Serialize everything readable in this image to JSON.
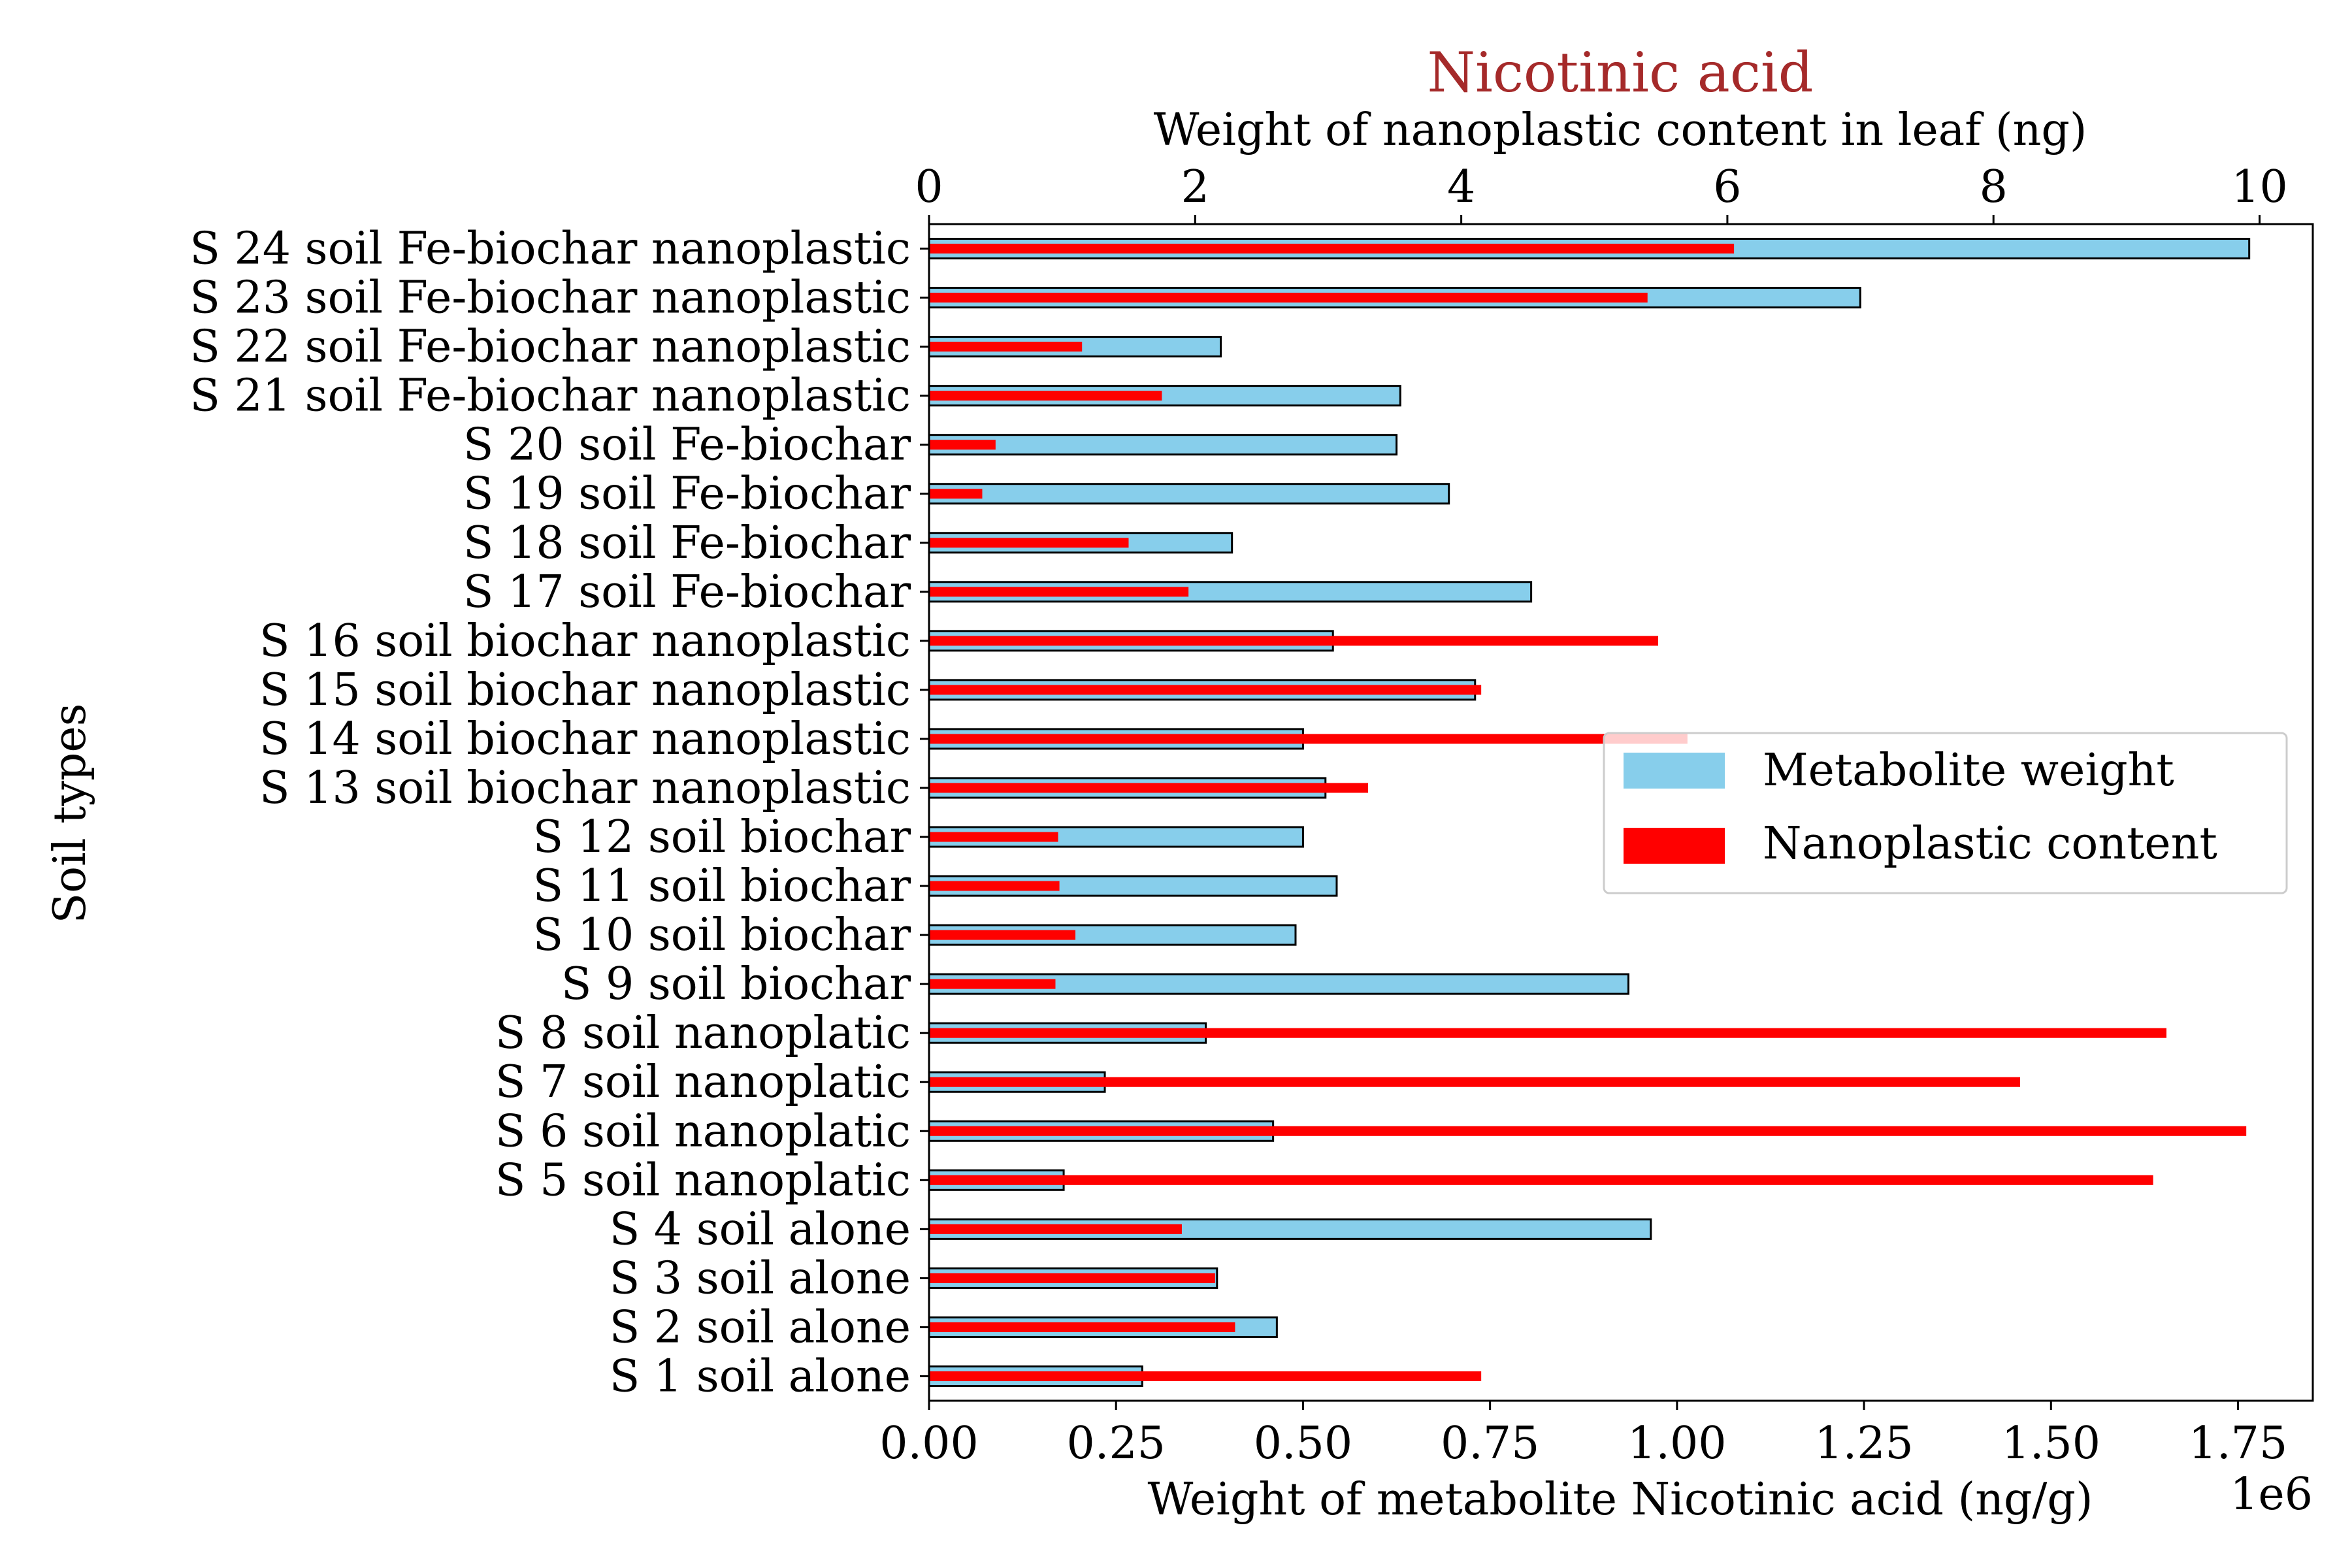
{
  "chart_data": {
    "type": "bar",
    "orientation": "horizontal",
    "title": "Nicotinic acid",
    "title_color": "#a52a2a",
    "ylabel": "Soil types",
    "xlabel_bottom": "Weight of metabolite Nicotinic acid (ng/g)",
    "xlabel_top": "Weight of nanoplastic content in leaf (ng)",
    "bottom_offset_text": "1e6",
    "xlim_bottom": [
      0,
      1.85
    ],
    "xlim_top": [
      0,
      10.4
    ],
    "bottom_ticks": [
      "0.00",
      "0.25",
      "0.50",
      "0.75",
      "1.00",
      "1.25",
      "1.50",
      "1.75"
    ],
    "top_ticks": [
      "0",
      "2",
      "4",
      "6",
      "8",
      "10"
    ],
    "categories": [
      "S 1 soil alone",
      "S 2 soil alone",
      "S 3 soil alone",
      "S 4 soil alone",
      "S 5 soil nanoplatic",
      "S 6 soil nanoplatic",
      "S 7 soil nanoplatic",
      "S 8 soil nanoplatic",
      "S 9 soil biochar",
      "S 10 soil biochar",
      "S 11 soil biochar",
      "S 12 soil biochar",
      "S 13 soil biochar nanoplastic",
      "S 14 soil biochar nanoplastic",
      "S 15 soil biochar nanoplastic",
      "S 16 soil biochar nanoplastic",
      "S 17 soil Fe-biochar",
      "S 18 soil Fe-biochar",
      "S 19 soil Fe-biochar",
      "S 20 soil Fe-biochar",
      "S 21 soil Fe-biochar nanoplastic",
      "S 22 soil Fe-biochar nanoplastic",
      "S 23 soil Fe-biochar nanoplastic",
      "S 24 soil Fe-biochar nanoplastic"
    ],
    "series": [
      {
        "name": "Metabolite weight",
        "axis": "bottom",
        "unit_multiplier": "1e6",
        "color": "#87ceeb",
        "edge_color": "#000000",
        "values": [
          0.285,
          0.465,
          0.385,
          0.965,
          0.18,
          0.46,
          0.235,
          0.37,
          0.935,
          0.49,
          0.545,
          0.5,
          0.53,
          0.5,
          0.73,
          0.54,
          0.805,
          0.405,
          0.695,
          0.625,
          0.63,
          0.39,
          1.245,
          1.765
        ]
      },
      {
        "name": "Nanoplastic content",
        "axis": "top",
        "color": "#ff0000",
        "values": [
          4.15,
          2.3,
          2.15,
          1.9,
          9.2,
          9.9,
          8.2,
          9.3,
          0.95,
          1.1,
          0.98,
          0.97,
          3.3,
          5.7,
          4.15,
          5.48,
          1.95,
          1.5,
          0.4,
          0.5,
          1.75,
          1.15,
          5.4,
          6.05
        ]
      }
    ],
    "legend": {
      "placement": "center-right",
      "entries": [
        "Metabolite weight",
        "Nanoplastic content"
      ]
    },
    "grid": false
  }
}
